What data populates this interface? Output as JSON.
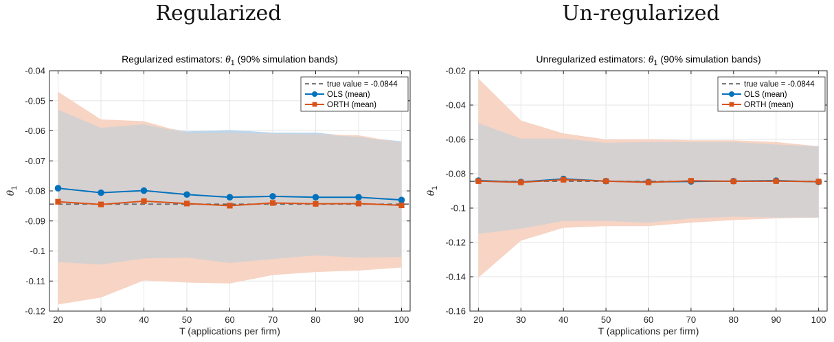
{
  "headings": {
    "left": "Regularized",
    "right": "Un-regularized"
  },
  "colors": {
    "ols": "#0072BD",
    "orth": "#D95319",
    "true_line": "#666666",
    "ols_band": "#bcd6ea",
    "orth_band": "#f7d4c4",
    "overlap_band": "#d6d1d1",
    "grid": "#e6e6e6",
    "axis": "#262626"
  },
  "chart_data": [
    {
      "type": "line",
      "title": "Regularized estimators: θ1 (90% simulation bands)",
      "title_main": "Regularized estimators: ",
      "title_theta": "θ",
      "title_sub": "1",
      "title_rest": " (90% simulation bands)",
      "xlabel": "T (applications per firm)",
      "ylabel_theta": "θ",
      "ylabel_sub": "1",
      "xlim": [
        18,
        102
      ],
      "ylim": [
        -0.12,
        -0.04
      ],
      "xticks": [
        20,
        30,
        40,
        50,
        60,
        70,
        80,
        90,
        100
      ],
      "xtick_labels": [
        "20",
        "30",
        "40",
        "50",
        "60",
        "70",
        "80",
        "90",
        "100"
      ],
      "yticks": [
        -0.12,
        -0.11,
        -0.1,
        -0.09,
        -0.08,
        -0.07,
        -0.06,
        -0.05,
        -0.04
      ],
      "ytick_labels": [
        "-0.12",
        "-0.11",
        "-0.1",
        "-0.09",
        "-0.08",
        "-0.07",
        "-0.06",
        "-0.05",
        "-0.04"
      ],
      "grid": true,
      "legend_position": "top-right",
      "true_value": -0.0844,
      "x": [
        20,
        30,
        40,
        50,
        60,
        70,
        80,
        90,
        100
      ],
      "series": [
        {
          "name": "OLS (mean)",
          "values": [
            -0.0791,
            -0.0806,
            -0.0799,
            -0.0812,
            -0.0821,
            -0.0818,
            -0.0821,
            -0.0821,
            -0.083
          ],
          "band_lower": [
            -0.1037,
            -0.1045,
            -0.1025,
            -0.1022,
            -0.104,
            -0.1027,
            -0.1015,
            -0.1022,
            -0.102
          ],
          "band_upper": [
            -0.053,
            -0.059,
            -0.0578,
            -0.0602,
            -0.0597,
            -0.0606,
            -0.0606,
            -0.062,
            -0.0635
          ]
        },
        {
          "name": "ORTH (mean)",
          "values": [
            -0.0836,
            -0.0845,
            -0.0834,
            -0.0842,
            -0.0849,
            -0.084,
            -0.0843,
            -0.0842,
            -0.0848
          ],
          "band_lower": [
            -0.1178,
            -0.1155,
            -0.1098,
            -0.1105,
            -0.1108,
            -0.108,
            -0.107,
            -0.1065,
            -0.1055
          ],
          "band_upper": [
            -0.047,
            -0.0562,
            -0.0568,
            -0.0608,
            -0.0607,
            -0.061,
            -0.0612,
            -0.0615,
            -0.064
          ]
        }
      ],
      "legend": [
        "true value = -0.0844",
        "OLS (mean)",
        "ORTH (mean)"
      ]
    },
    {
      "type": "line",
      "title": "Unregularized estimators: θ1 (90% simulation bands)",
      "title_main": "Unregularized estimators: ",
      "title_theta": "θ",
      "title_sub": "1",
      "title_rest": " (90% simulation bands)",
      "xlabel": "T (applications per firm)",
      "ylabel_theta": "θ",
      "ylabel_sub": "1",
      "xlim": [
        18,
        102
      ],
      "ylim": [
        -0.16,
        -0.02
      ],
      "xticks": [
        20,
        30,
        40,
        50,
        60,
        70,
        80,
        90,
        100
      ],
      "xtick_labels": [
        "20",
        "30",
        "40",
        "50",
        "60",
        "70",
        "80",
        "90",
        "100"
      ],
      "yticks": [
        -0.16,
        -0.14,
        -0.12,
        -0.1,
        -0.08,
        -0.06,
        -0.04,
        -0.02
      ],
      "ytick_labels": [
        "-0.16",
        "-0.14",
        "-0.12",
        "-0.1",
        "-0.08",
        "-0.06",
        "-0.04",
        "-0.02"
      ],
      "grid": true,
      "legend_position": "top-right",
      "true_value": -0.0844,
      "x": [
        20,
        30,
        40,
        50,
        60,
        70,
        80,
        90,
        100
      ],
      "series": [
        {
          "name": "OLS (mean)",
          "values": [
            -0.084,
            -0.0848,
            -0.083,
            -0.0843,
            -0.0848,
            -0.0845,
            -0.0843,
            -0.084,
            -0.0847
          ],
          "band_lower": [
            -0.115,
            -0.112,
            -0.1075,
            -0.1075,
            -0.1085,
            -0.106,
            -0.105,
            -0.1055,
            -0.1055
          ],
          "band_upper": [
            -0.0505,
            -0.0595,
            -0.0595,
            -0.062,
            -0.0615,
            -0.0615,
            -0.0615,
            -0.063,
            -0.064
          ]
        },
        {
          "name": "ORTH (mean)",
          "values": [
            -0.0843,
            -0.085,
            -0.0835,
            -0.0843,
            -0.085,
            -0.0841,
            -0.0844,
            -0.0843,
            -0.0846
          ],
          "band_lower": [
            -0.1405,
            -0.119,
            -0.1115,
            -0.1105,
            -0.1105,
            -0.1085,
            -0.107,
            -0.106,
            -0.1055
          ],
          "band_upper": [
            -0.0245,
            -0.049,
            -0.0565,
            -0.06,
            -0.06,
            -0.0605,
            -0.0605,
            -0.0615,
            -0.064
          ]
        }
      ],
      "legend": [
        "true value = -0.0844",
        "OLS (mean)",
        "ORTH (mean)"
      ]
    }
  ]
}
